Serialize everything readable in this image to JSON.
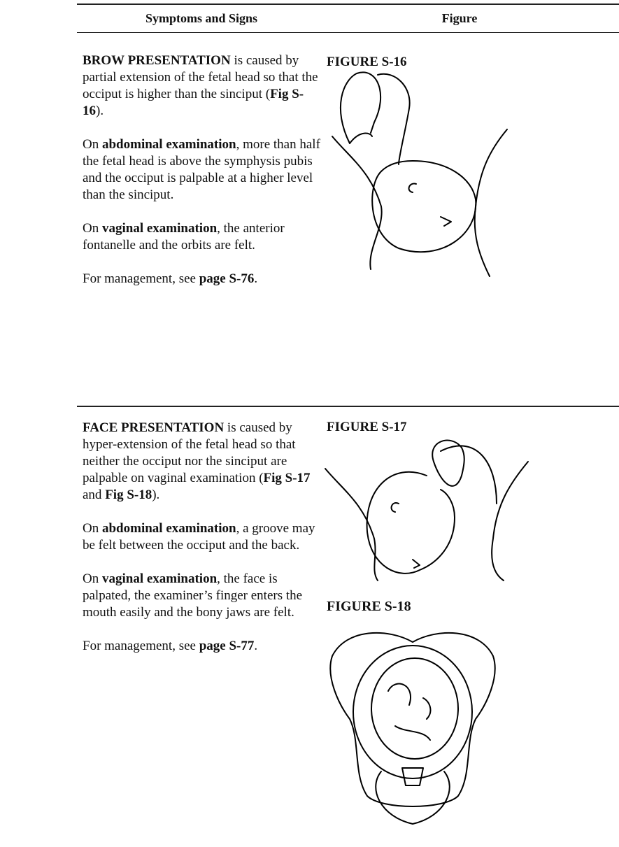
{
  "header": {
    "col1": "Symptoms and Signs",
    "col2": "Figure"
  },
  "rows": [
    {
      "paragraphs": [
        [
          "BROW PRESENTATION",
          " is caused by partial extension of the fetal head so that the occiput is higher than the sinciput (",
          "Fig S-16",
          ")."
        ],
        [
          "On ",
          "abdominal examination",
          ", more than half the fetal head is above the symphysis pubis and the occiput is palpable at a higher level than the sinciput."
        ],
        [
          "On ",
          "vaginal examination",
          ", the anterior fontanelle and the orbits are felt."
        ],
        [
          "For management, see ",
          "page S-76",
          "."
        ]
      ],
      "figures": [
        "FIGURE S-16"
      ]
    },
    {
      "paragraphs": [
        [
          "FACE PRESENTATION",
          " is caused by hyper-extension of the fetal head so that neither the occiput nor the sinciput are palpable on vaginal examination (",
          "Fig S-17",
          " and ",
          "Fig S-18",
          ")."
        ],
        [
          "On ",
          "abdominal examination",
          ", a groove may be felt between the occiput and the back."
        ],
        [
          "On ",
          "vaginal examination",
          ", the face is palpated, the examiner’s finger enters the mouth easily and the bony jaws are felt."
        ],
        [
          "For management, see ",
          "page S-77",
          "."
        ]
      ],
      "figures": [
        "FIGURE S-17",
        "FIGURE S-18"
      ]
    }
  ]
}
